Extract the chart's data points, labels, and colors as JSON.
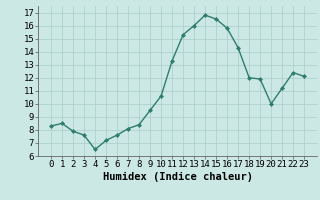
{
  "x": [
    0,
    1,
    2,
    3,
    4,
    5,
    6,
    7,
    8,
    9,
    10,
    11,
    12,
    13,
    14,
    15,
    16,
    17,
    18,
    19,
    20,
    21,
    22,
    23
  ],
  "y": [
    8.3,
    8.5,
    7.9,
    7.6,
    6.5,
    7.2,
    7.6,
    8.1,
    8.4,
    9.5,
    10.6,
    13.3,
    15.3,
    16.0,
    16.8,
    16.5,
    15.8,
    14.3,
    12.0,
    11.9,
    10.0,
    11.2,
    12.4,
    12.1
  ],
  "line_color": "#2e7d6e",
  "marker": "D",
  "marker_size": 2.0,
  "bg_color": "#cce8e4",
  "grid_color": "#aaccc8",
  "xlabel": "Humidex (Indice chaleur)",
  "ylim": [
    6,
    17.5
  ],
  "yticks": [
    6,
    7,
    8,
    9,
    10,
    11,
    12,
    13,
    14,
    15,
    16,
    17
  ],
  "xticks": [
    0,
    1,
    2,
    3,
    4,
    5,
    6,
    7,
    8,
    9,
    10,
    11,
    12,
    13,
    14,
    15,
    16,
    17,
    18,
    19,
    20,
    21,
    22,
    23
  ],
  "xlabel_fontsize": 7.5,
  "tick_fontsize": 6.5,
  "line_width": 1.0
}
